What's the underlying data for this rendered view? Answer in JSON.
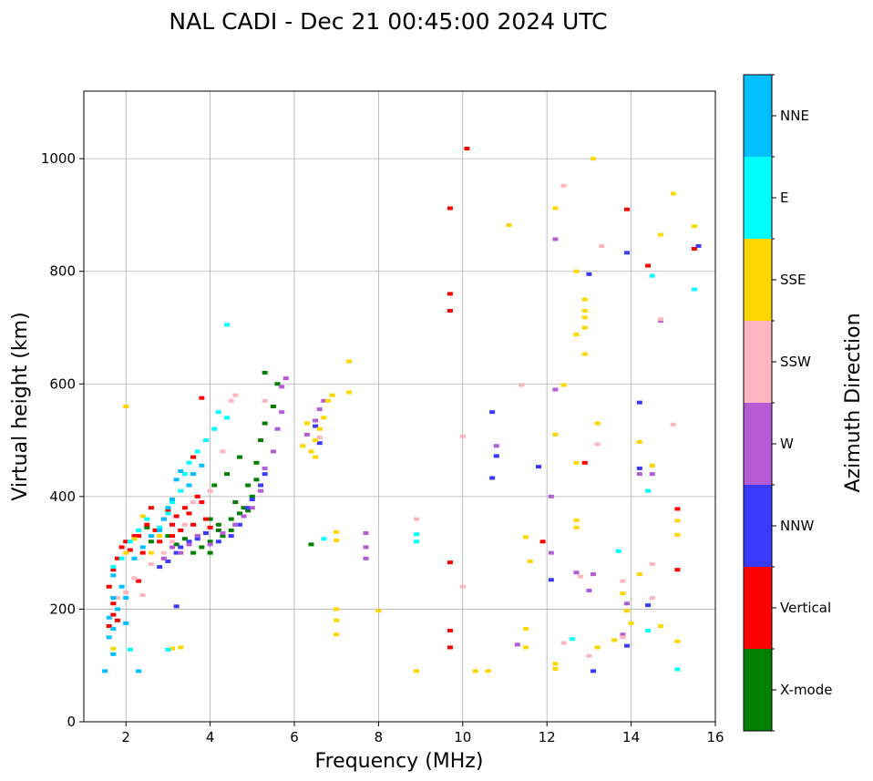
{
  "chart_data": {
    "type": "scatter",
    "title": "NAL CADI - Dec 21 00:45:00 2024 UTC",
    "xlabel": "Frequency (MHz)",
    "ylabel": "Virtual height (km)",
    "xlim": [
      1,
      16
    ],
    "ylim": [
      0,
      1120
    ],
    "xticks": [
      2,
      4,
      6,
      8,
      10,
      12,
      14,
      16
    ],
    "yticks": [
      0,
      200,
      400,
      600,
      800,
      1000
    ],
    "grid": true,
    "colorbar": {
      "label": "Azimuth Direction",
      "categories": [
        {
          "name": "X-mode",
          "color": "#008000"
        },
        {
          "name": "Vertical",
          "color": "#ff0000"
        },
        {
          "name": "NNW",
          "color": "#3a3aff"
        },
        {
          "name": "W",
          "color": "#b55bd6"
        },
        {
          "name": "SSW",
          "color": "#ffb6c1"
        },
        {
          "name": "SSE",
          "color": "#ffd700"
        },
        {
          "name": "E",
          "color": "#00ffff"
        },
        {
          "name": "NNE",
          "color": "#00bfff"
        }
      ]
    },
    "series": [
      {
        "name": "X-mode",
        "points": [
          [
            2.5,
            345
          ],
          [
            2.6,
            320
          ],
          [
            3.0,
            330
          ],
          [
            3.2,
            315
          ],
          [
            3.4,
            325
          ],
          [
            3.6,
            300
          ],
          [
            3.7,
            330
          ],
          [
            3.8,
            310
          ],
          [
            4.0,
            320
          ],
          [
            4.0,
            300
          ],
          [
            4.2,
            340
          ],
          [
            4.3,
            330
          ],
          [
            4.5,
            360
          ],
          [
            4.5,
            340
          ],
          [
            4.6,
            350
          ],
          [
            4.7,
            370
          ],
          [
            4.8,
            380
          ],
          [
            4.9,
            375
          ],
          [
            5.0,
            400
          ],
          [
            4.9,
            420
          ],
          [
            5.1,
            430
          ],
          [
            5.1,
            460
          ],
          [
            5.2,
            500
          ],
          [
            5.3,
            530
          ],
          [
            5.5,
            560
          ],
          [
            5.6,
            600
          ],
          [
            5.3,
            620
          ],
          [
            4.7,
            470
          ],
          [
            4.4,
            440
          ],
          [
            4.1,
            420
          ],
          [
            6.4,
            315
          ],
          [
            4.2,
            350
          ],
          [
            4.6,
            390
          ],
          [
            4.0,
            360
          ],
          [
            3.9,
            335
          ]
        ]
      },
      {
        "name": "Vertical",
        "points": [
          [
            1.6,
            170
          ],
          [
            1.7,
            190
          ],
          [
            1.7,
            210
          ],
          [
            1.6,
            240
          ],
          [
            1.7,
            270
          ],
          [
            1.8,
            290
          ],
          [
            1.9,
            310
          ],
          [
            2.0,
            320
          ],
          [
            2.1,
            305
          ],
          [
            2.2,
            330
          ],
          [
            2.3,
            330
          ],
          [
            2.4,
            300
          ],
          [
            2.5,
            350
          ],
          [
            2.6,
            380
          ],
          [
            2.7,
            340
          ],
          [
            2.8,
            320
          ],
          [
            2.9,
            360
          ],
          [
            3.0,
            375
          ],
          [
            3.1,
            350
          ],
          [
            3.2,
            365
          ],
          [
            3.3,
            340
          ],
          [
            3.4,
            380
          ],
          [
            3.5,
            370
          ],
          [
            3.6,
            350
          ],
          [
            3.7,
            400
          ],
          [
            3.8,
            390
          ],
          [
            3.9,
            360
          ],
          [
            4.0,
            345
          ],
          [
            3.1,
            330
          ],
          [
            3.6,
            470
          ],
          [
            3.8,
            575
          ],
          [
            2.3,
            250
          ],
          [
            1.8,
            180
          ],
          [
            9.7,
            912
          ],
          [
            9.7,
            760
          ],
          [
            9.7,
            730
          ],
          [
            9.7,
            283
          ],
          [
            9.7,
            162
          ],
          [
            9.7,
            132
          ],
          [
            10.1,
            1018
          ],
          [
            11.9,
            320
          ],
          [
            12.9,
            460
          ],
          [
            13.9,
            910
          ],
          [
            14.4,
            810
          ],
          [
            15.1,
            378
          ],
          [
            15.1,
            270
          ],
          [
            15.5,
            840
          ]
        ]
      },
      {
        "name": "NNW",
        "points": [
          [
            2.8,
            275
          ],
          [
            3.0,
            285
          ],
          [
            3.2,
            300
          ],
          [
            3.3,
            310
          ],
          [
            3.5,
            320
          ],
          [
            3.7,
            325
          ],
          [
            3.9,
            335
          ],
          [
            4.2,
            320
          ],
          [
            4.5,
            330
          ],
          [
            4.7,
            350
          ],
          [
            4.9,
            380
          ],
          [
            5.0,
            395
          ],
          [
            5.2,
            420
          ],
          [
            5.3,
            440
          ],
          [
            6.5,
            525
          ],
          [
            6.6,
            495
          ],
          [
            10.7,
            550
          ],
          [
            10.8,
            472
          ],
          [
            10.7,
            433
          ],
          [
            11.8,
            453
          ],
          [
            12.1,
            252
          ],
          [
            13.0,
            795
          ],
          [
            13.1,
            90
          ],
          [
            13.9,
            833
          ],
          [
            14.2,
            567
          ],
          [
            14.2,
            450
          ],
          [
            14.4,
            207
          ],
          [
            13.9,
            135
          ],
          [
            15.6,
            845
          ],
          [
            3.2,
            205
          ]
        ]
      },
      {
        "name": "W",
        "points": [
          [
            2.9,
            290
          ],
          [
            3.1,
            310
          ],
          [
            3.3,
            300
          ],
          [
            3.5,
            315
          ],
          [
            3.7,
            330
          ],
          [
            4.0,
            315
          ],
          [
            4.3,
            335
          ],
          [
            4.6,
            350
          ],
          [
            4.8,
            365
          ],
          [
            5.0,
            380
          ],
          [
            5.2,
            410
          ],
          [
            5.3,
            450
          ],
          [
            5.5,
            480
          ],
          [
            5.6,
            520
          ],
          [
            5.7,
            550
          ],
          [
            5.7,
            595
          ],
          [
            5.8,
            610
          ],
          [
            6.3,
            510
          ],
          [
            6.5,
            535
          ],
          [
            6.6,
            555
          ],
          [
            6.7,
            570
          ],
          [
            7.7,
            335
          ],
          [
            7.7,
            310
          ],
          [
            7.7,
            290
          ],
          [
            10.8,
            490
          ],
          [
            12.1,
            400
          ],
          [
            12.1,
            300
          ],
          [
            12.2,
            590
          ],
          [
            12.2,
            857
          ],
          [
            12.7,
            265
          ],
          [
            13.0,
            233
          ],
          [
            13.1,
            262
          ],
          [
            13.9,
            210
          ],
          [
            13.8,
            155
          ],
          [
            14.2,
            440
          ],
          [
            14.5,
            440
          ],
          [
            14.7,
            712
          ],
          [
            11.3,
            137
          ]
        ]
      },
      {
        "name": "SSW",
        "points": [
          [
            1.8,
            220
          ],
          [
            2.0,
            230
          ],
          [
            2.2,
            255
          ],
          [
            2.4,
            225
          ],
          [
            2.6,
            280
          ],
          [
            2.9,
            300
          ],
          [
            3.1,
            320
          ],
          [
            3.4,
            350
          ],
          [
            3.6,
            390
          ],
          [
            4.0,
            410
          ],
          [
            4.3,
            480
          ],
          [
            4.1,
            520
          ],
          [
            4.5,
            570
          ],
          [
            4.6,
            580
          ],
          [
            5.3,
            570
          ],
          [
            6.6,
            505
          ],
          [
            8.9,
            360
          ],
          [
            10.0,
            507
          ],
          [
            10.0,
            240
          ],
          [
            11.4,
            598
          ],
          [
            12.4,
            140
          ],
          [
            12.8,
            258
          ],
          [
            13.0,
            117
          ],
          [
            13.2,
            493
          ],
          [
            13.3,
            845
          ],
          [
            13.8,
            250
          ],
          [
            13.8,
            150
          ],
          [
            14.5,
            280
          ],
          [
            14.5,
            220
          ],
          [
            14.7,
            715
          ],
          [
            15.0,
            528
          ],
          [
            12.4,
            952
          ]
        ]
      },
      {
        "name": "SSE",
        "points": [
          [
            1.7,
            130
          ],
          [
            2.0,
            300
          ],
          [
            2.2,
            325
          ],
          [
            2.4,
            365
          ],
          [
            2.6,
            300
          ],
          [
            2.8,
            330
          ],
          [
            3.1,
            130
          ],
          [
            3.3,
            132
          ],
          [
            6.4,
            480
          ],
          [
            6.5,
            500
          ],
          [
            6.6,
            520
          ],
          [
            6.7,
            540
          ],
          [
            6.8,
            570
          ],
          [
            6.9,
            580
          ],
          [
            6.3,
            530
          ],
          [
            6.2,
            490
          ],
          [
            6.5,
            470
          ],
          [
            7.0,
            200
          ],
          [
            7.0,
            180
          ],
          [
            7.0,
            155
          ],
          [
            7.0,
            337
          ],
          [
            7.0,
            322
          ],
          [
            7.3,
            585
          ],
          [
            8.0,
            197
          ],
          [
            8.9,
            90
          ],
          [
            10.3,
            90
          ],
          [
            10.6,
            90
          ],
          [
            11.1,
            882
          ],
          [
            11.5,
            328
          ],
          [
            11.6,
            285
          ],
          [
            11.5,
            165
          ],
          [
            11.5,
            132
          ],
          [
            12.2,
            912
          ],
          [
            12.2,
            510
          ],
          [
            12.2,
            103
          ],
          [
            12.2,
            94
          ],
          [
            12.4,
            598
          ],
          [
            12.7,
            800
          ],
          [
            12.7,
            688
          ],
          [
            12.7,
            358
          ],
          [
            12.7,
            345
          ],
          [
            12.9,
            750
          ],
          [
            12.9,
            730
          ],
          [
            12.9,
            718
          ],
          [
            12.9,
            700
          ],
          [
            12.9,
            653
          ],
          [
            13.2,
            530
          ],
          [
            13.2,
            132
          ],
          [
            13.1,
            1000
          ],
          [
            13.6,
            145
          ],
          [
            13.8,
            228
          ],
          [
            13.9,
            197
          ],
          [
            14.0,
            175
          ],
          [
            14.2,
            497
          ],
          [
            14.2,
            262
          ],
          [
            14.5,
            455
          ],
          [
            14.7,
            865
          ],
          [
            14.7,
            170
          ],
          [
            15.0,
            938
          ],
          [
            15.1,
            357
          ],
          [
            15.1,
            332
          ],
          [
            15.1,
            143
          ],
          [
            15.5,
            880
          ],
          [
            7.3,
            640
          ],
          [
            12.7,
            460
          ],
          [
            2.0,
            560
          ]
        ]
      },
      {
        "name": "E",
        "points": [
          [
            1.7,
            275
          ],
          [
            1.9,
            290
          ],
          [
            2.1,
            320
          ],
          [
            2.3,
            340
          ],
          [
            2.5,
            360
          ],
          [
            2.8,
            345
          ],
          [
            3.0,
            370
          ],
          [
            3.1,
            390
          ],
          [
            3.3,
            410
          ],
          [
            3.4,
            440
          ],
          [
            3.5,
            460
          ],
          [
            3.7,
            480
          ],
          [
            3.9,
            500
          ],
          [
            4.1,
            520
          ],
          [
            4.2,
            550
          ],
          [
            4.4,
            540
          ],
          [
            4.4,
            705
          ],
          [
            6.7,
            325
          ],
          [
            8.9,
            333
          ],
          [
            8.9,
            320
          ],
          [
            12.6,
            147
          ],
          [
            13.7,
            303
          ],
          [
            14.4,
            410
          ],
          [
            14.4,
            162
          ],
          [
            14.5,
            792
          ],
          [
            15.1,
            93
          ],
          [
            15.5,
            768
          ],
          [
            2.1,
            128
          ],
          [
            3.0,
            128
          ]
        ]
      },
      {
        "name": "NNE",
        "points": [
          [
            1.6,
            150
          ],
          [
            1.7,
            165
          ],
          [
            1.6,
            185
          ],
          [
            1.8,
            200
          ],
          [
            1.7,
            220
          ],
          [
            1.9,
            240
          ],
          [
            1.7,
            260
          ],
          [
            2.0,
            175
          ],
          [
            2.2,
            290
          ],
          [
            2.4,
            310
          ],
          [
            2.6,
            330
          ],
          [
            2.8,
            340
          ],
          [
            2.9,
            360
          ],
          [
            3.0,
            380
          ],
          [
            3.1,
            395
          ],
          [
            3.2,
            430
          ],
          [
            3.3,
            445
          ],
          [
            3.5,
            420
          ],
          [
            3.6,
            440
          ],
          [
            3.8,
            455
          ],
          [
            2.3,
            90
          ],
          [
            1.5,
            90
          ],
          [
            1.7,
            120
          ],
          [
            2.0,
            220
          ]
        ]
      }
    ]
  }
}
